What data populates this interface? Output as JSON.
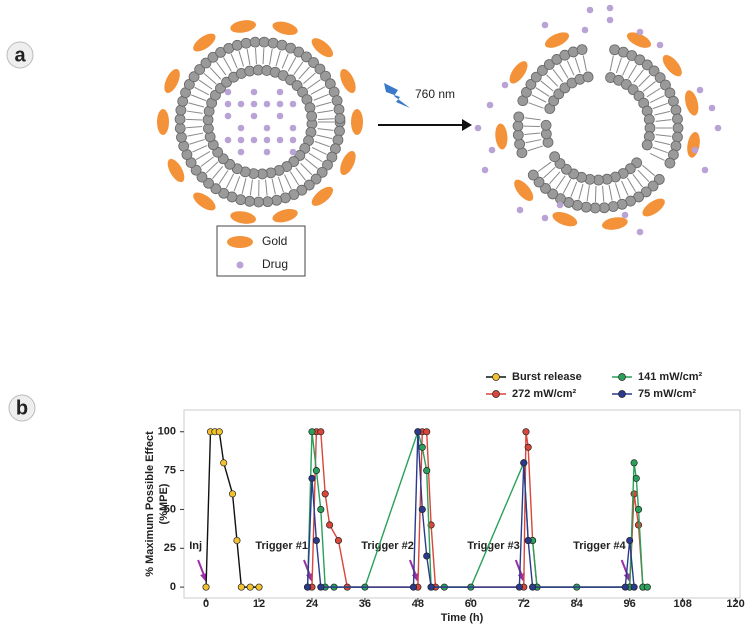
{
  "panel_a": {
    "label": "a",
    "light": "760 nm",
    "legend": [
      "Gold",
      "Drug"
    ]
  },
  "panel_b_label": "b",
  "chart_data": {
    "type": "line",
    "y_label": [
      "% Maximum Possible Effect",
      "(%MPE)"
    ],
    "x_label": "Time (h)",
    "xlim": [
      -5,
      121
    ],
    "ylim": [
      -7,
      114
    ],
    "xticks": [
      0,
      12,
      24,
      36,
      48,
      60,
      72,
      84,
      96,
      108,
      120
    ],
    "yticks": [
      0,
      25,
      50,
      75,
      100
    ],
    "legend_position": "top-right",
    "series": [
      {
        "name": "Burst release",
        "color": "#f2c12e",
        "line_color": "#111111",
        "x": [
          0,
          1,
          2,
          3,
          4,
          6,
          7,
          8,
          10,
          12
        ],
        "values": [
          0,
          100,
          100,
          100,
          80,
          60,
          30,
          0,
          0,
          0
        ]
      },
      {
        "name": "272 mW/cm²",
        "color": "#d9463a",
        "line_color": "#d9463a",
        "x": [
          24,
          25,
          26,
          27,
          28,
          30,
          32,
          48,
          49,
          50,
          51,
          52,
          72,
          72.5,
          73,
          74,
          75,
          96,
          97,
          98,
          99
        ],
        "values": [
          0,
          100,
          100,
          60,
          40,
          30,
          0,
          0,
          100,
          100,
          40,
          0,
          0,
          100,
          90,
          30,
          0,
          0,
          60,
          40,
          0
        ]
      },
      {
        "name": "141 mW/cm²",
        "color": "#2aa05a",
        "line_color": "#2aa05a",
        "x": [
          23,
          24,
          25,
          26,
          27,
          29,
          36,
          48,
          49,
          50,
          51,
          54,
          60,
          72,
          73,
          74,
          75,
          84,
          96,
          97,
          97.5,
          98,
          99,
          100
        ],
        "values": [
          0,
          100,
          75,
          50,
          0,
          0,
          0,
          100,
          90,
          75,
          0,
          0,
          0,
          80,
          30,
          30,
          0,
          0,
          0,
          80,
          70,
          50,
          0,
          0
        ]
      },
      {
        "name": "75 mW/cm²",
        "color": "#2b3a8c",
        "line_color": "#2b3a8c",
        "x": [
          23,
          24,
          25,
          26,
          47,
          48,
          49,
          50,
          51,
          71,
          72,
          73,
          74,
          95,
          96,
          97
        ],
        "values": [
          0,
          70,
          30,
          0,
          0,
          100,
          50,
          20,
          0,
          0,
          80,
          30,
          0,
          0,
          30,
          0
        ]
      }
    ],
    "annotations": [
      {
        "text": "Inj",
        "x": 0
      },
      {
        "text": "Trigger #1",
        "x": 24
      },
      {
        "text": "Trigger #2",
        "x": 48
      },
      {
        "text": "Trigger #3",
        "x": 72
      },
      {
        "text": "Trigger #4",
        "x": 96
      }
    ]
  }
}
